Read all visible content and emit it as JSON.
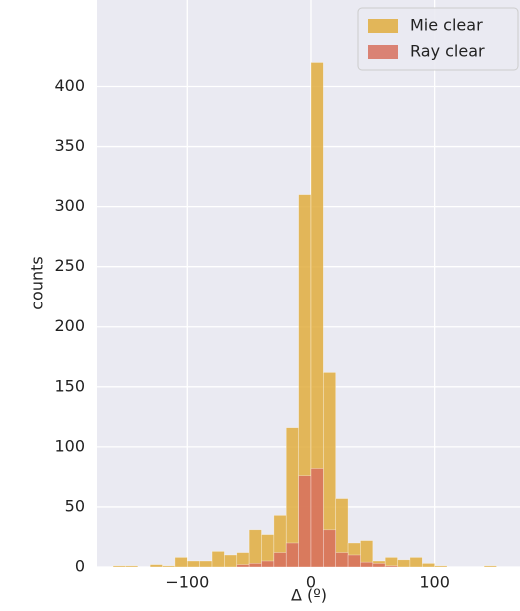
{
  "chart_data": {
    "type": "histogram",
    "xlabel": "Δ (º)",
    "ylabel": "counts",
    "bins": [
      -170,
      -160,
      -150,
      -140,
      -130,
      -120,
      -110,
      -100,
      -90,
      -80,
      -70,
      -60,
      -50,
      -40,
      -30,
      -20,
      -10,
      0,
      10,
      20,
      30,
      40,
      50,
      60,
      70,
      80,
      90,
      100,
      110,
      120,
      130,
      140,
      150,
      160
    ],
    "series": [
      {
        "name": "Mie clear",
        "color": "#e0ad3e",
        "values": [
          0,
          1,
          1,
          0,
          2,
          1,
          8,
          5,
          5,
          13,
          10,
          12,
          31,
          27,
          43,
          116,
          310,
          420,
          162,
          57,
          20,
          22,
          5,
          8,
          6,
          8,
          3,
          1,
          0,
          0,
          0,
          1,
          0
        ]
      },
      {
        "name": "Ray clear",
        "color": "#d7705e",
        "values": [
          0,
          0,
          0,
          0,
          0,
          0,
          0,
          0,
          0,
          0,
          0,
          2,
          3,
          5,
          12,
          20,
          76,
          82,
          31,
          12,
          10,
          4,
          3,
          1,
          0,
          0,
          0,
          0,
          0,
          0,
          0,
          0,
          0
        ]
      }
    ],
    "xlim": [
      -173,
      169
    ],
    "ylim": [
      0,
      472
    ],
    "xticks": [
      {
        "value": -100,
        "label": "−100"
      },
      0,
      100
    ],
    "yticks": [
      0,
      50,
      100,
      150,
      200,
      250,
      300,
      350,
      400
    ],
    "grid": true,
    "legend": "upper right"
  }
}
